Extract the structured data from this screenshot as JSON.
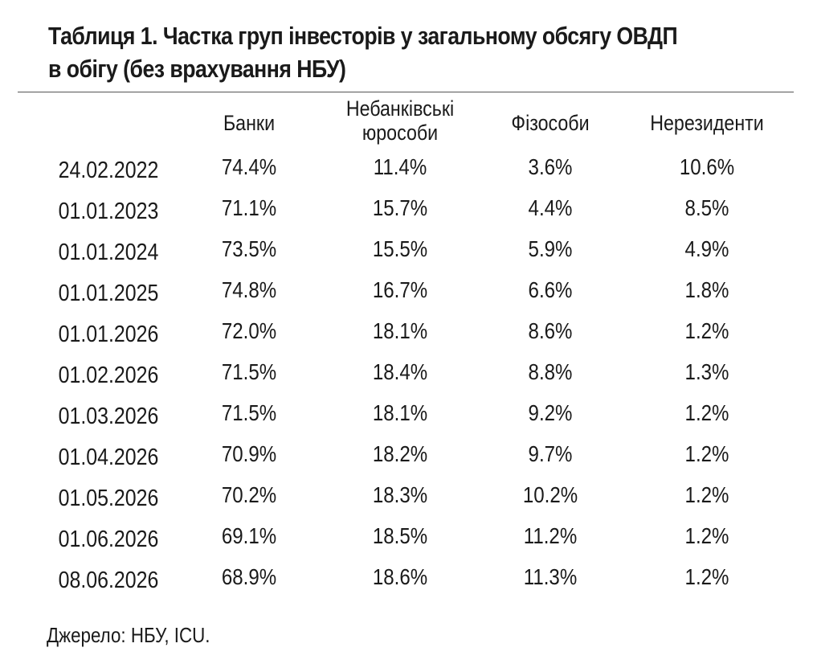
{
  "title": {
    "line1": "Таблиця 1. Частка груп інвесторів у загальному обсягу ОВДП",
    "line2": "в обігу (без врахування НБУ)"
  },
  "table": {
    "columns": {
      "banks": "Банки",
      "nonbank_line1": "Небанківські",
      "nonbank_line2": "юрособи",
      "physical": "Фізособи",
      "nonresidents": "Нерезиденти"
    },
    "rows": [
      {
        "date": "24.02.2022",
        "banks": "74.4%",
        "nonbank": "11.4%",
        "physical": "3.6%",
        "nonresidents": "10.6%"
      },
      {
        "date": "01.01.2023",
        "banks": "71.1%",
        "nonbank": "15.7%",
        "physical": "4.4%",
        "nonresidents": "8.5%"
      },
      {
        "date": "01.01.2024",
        "banks": "73.5%",
        "nonbank": "15.5%",
        "physical": "5.9%",
        "nonresidents": "4.9%"
      },
      {
        "date": "01.01.2025",
        "banks": "74.8%",
        "nonbank": "16.7%",
        "physical": "6.6%",
        "nonresidents": "1.8%"
      },
      {
        "date": "01.01.2026",
        "banks": "72.0%",
        "nonbank": "18.1%",
        "physical": "8.6%",
        "nonresidents": "1.2%"
      },
      {
        "date": "01.02.2026",
        "banks": "71.5%",
        "nonbank": "18.4%",
        "physical": "8.8%",
        "nonresidents": "1.3%"
      },
      {
        "date": "01.03.2026",
        "banks": "71.5%",
        "nonbank": "18.1%",
        "physical": "9.2%",
        "nonresidents": "1.2%"
      },
      {
        "date": "01.04.2026",
        "banks": "70.9%",
        "nonbank": "18.2%",
        "physical": "9.7%",
        "nonresidents": "1.2%"
      },
      {
        "date": "01.05.2026",
        "banks": "70.2%",
        "nonbank": "18.3%",
        "physical": "10.2%",
        "nonresidents": "1.2%"
      },
      {
        "date": "01.06.2026",
        "banks": "69.1%",
        "nonbank": "18.5%",
        "physical": "11.2%",
        "nonresidents": "1.2%"
      },
      {
        "date": "08.06.2026",
        "banks": "68.9%",
        "nonbank": "18.6%",
        "physical": "11.3%",
        "nonresidents": "1.2%"
      }
    ]
  },
  "source": "Джерело: НБУ, ICU."
}
